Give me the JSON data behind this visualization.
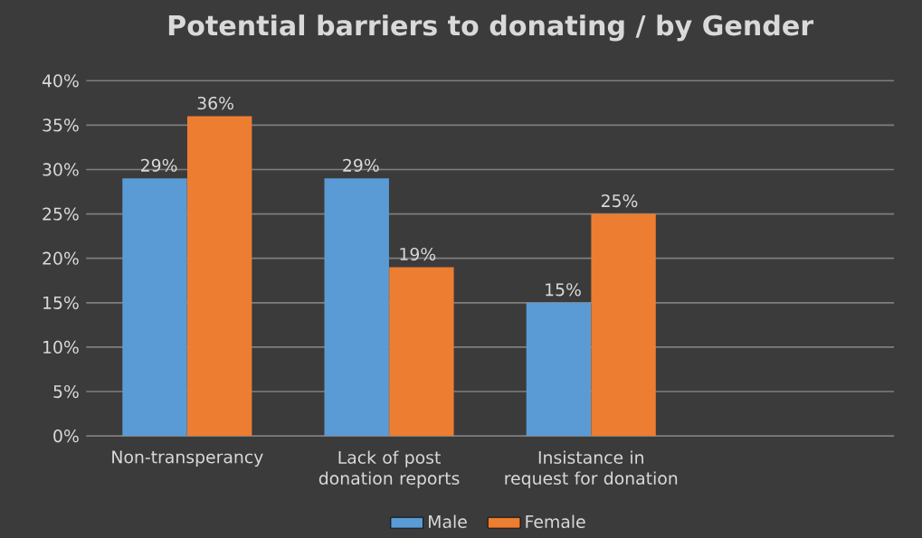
{
  "chart_data": {
    "type": "bar",
    "title": "Potential barriers to donating / by Gender",
    "categories": [
      "Non-transperancy",
      "Lack of post donation reports",
      "Insistance in request for donation"
    ],
    "series": [
      {
        "name": "Male",
        "color": "#5b9bd5",
        "values": [
          29,
          29,
          15
        ],
        "value_labels": [
          "29%",
          "29%",
          "15%"
        ]
      },
      {
        "name": "Female",
        "color": "#ed7d31",
        "values": [
          36,
          19,
          25
        ],
        "value_labels": [
          "36%",
          "19%",
          "25%"
        ]
      }
    ],
    "ylim": [
      0,
      40
    ],
    "yticks": [
      {
        "value": 0,
        "label": "0%"
      },
      {
        "value": 5,
        "label": "5%"
      },
      {
        "value": 10,
        "label": "10%"
      },
      {
        "value": 15,
        "label": "15%"
      },
      {
        "value": 20,
        "label": "20%"
      },
      {
        "value": 25,
        "label": "25%"
      },
      {
        "value": 30,
        "label": "30%"
      },
      {
        "value": 35,
        "label": "35%"
      },
      {
        "value": 40,
        "label": "40%"
      }
    ],
    "grid": "y",
    "legend": "bottom"
  }
}
